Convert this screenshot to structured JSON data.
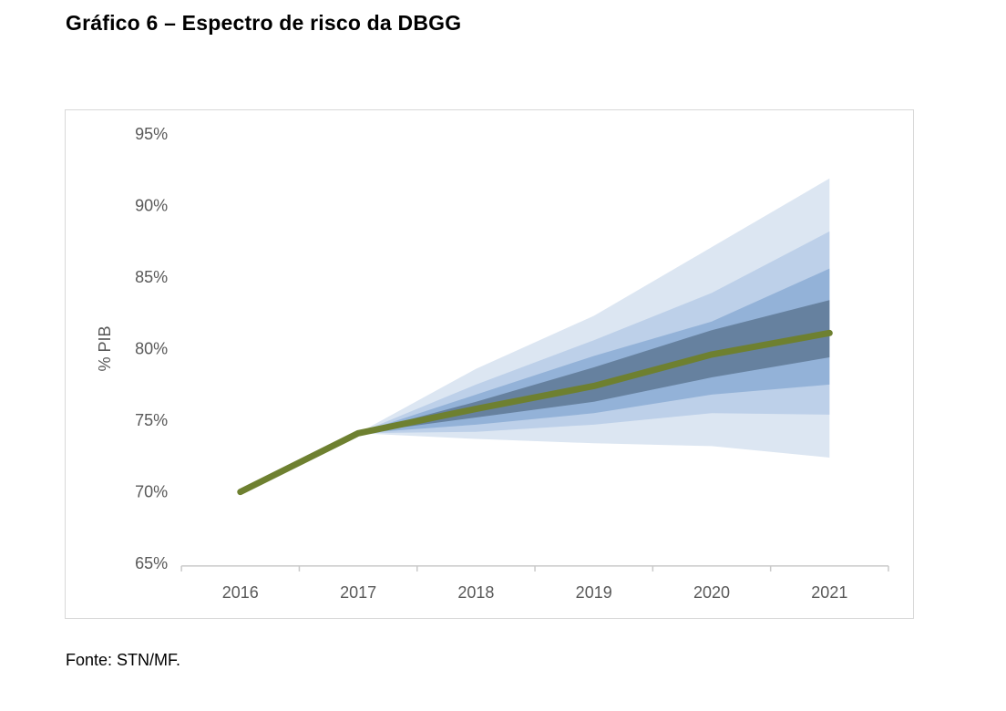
{
  "page": {
    "title": "Gráfico 6 – Espectro de risco da DBGG",
    "source": "Fonte: STN/MF."
  },
  "chart_data": {
    "type": "area",
    "subtype": "fan-chart",
    "title": "Gráfico 6 – Espectro de risco da DBGG",
    "xlabel": "",
    "ylabel": "% PIB",
    "x": [
      2016,
      2017,
      2018,
      2019,
      2020,
      2021
    ],
    "ylim": [
      65,
      95
    ],
    "yticks": [
      95,
      90,
      85,
      80,
      75,
      70,
      65
    ],
    "ytick_labels": [
      "95%",
      "90%",
      "85%",
      "80%",
      "75%",
      "70%",
      "65%"
    ],
    "grid": false,
    "legend": "none",
    "central": {
      "name": "trajetoria-central-dbgg",
      "values": [
        70.0,
        74.1,
        75.8,
        77.4,
        79.6,
        81.1
      ],
      "color": "#6e8030",
      "width": 7
    },
    "band_years": [
      2017,
      2018,
      2019,
      2020,
      2021
    ],
    "bands": [
      {
        "name": "banda-externa",
        "color": "#dce6f2",
        "upper": [
          74.1,
          78.6,
          82.3,
          87.1,
          91.9
        ],
        "lower": [
          74.1,
          73.7,
          73.4,
          73.2,
          72.4
        ]
      },
      {
        "name": "banda-2",
        "color": "#bdd0e9",
        "upper": [
          74.1,
          77.5,
          80.6,
          83.9,
          88.2
        ],
        "lower": [
          74.1,
          74.2,
          74.7,
          75.5,
          75.4
        ]
      },
      {
        "name": "banda-3",
        "color": "#93b2d8",
        "upper": [
          74.1,
          76.8,
          79.5,
          81.9,
          85.6
        ],
        "lower": [
          74.1,
          74.7,
          75.5,
          76.8,
          77.5
        ]
      },
      {
        "name": "banda-interna",
        "color": "#66819f",
        "upper": [
          74.1,
          76.3,
          78.7,
          81.3,
          83.4
        ],
        "lower": [
          74.1,
          75.2,
          76.3,
          78.0,
          79.4
        ]
      }
    ],
    "colors": {
      "axis_text": "#595959",
      "axis_line": "#c9c9c9",
      "frame_border": "#d9d9d9"
    }
  }
}
